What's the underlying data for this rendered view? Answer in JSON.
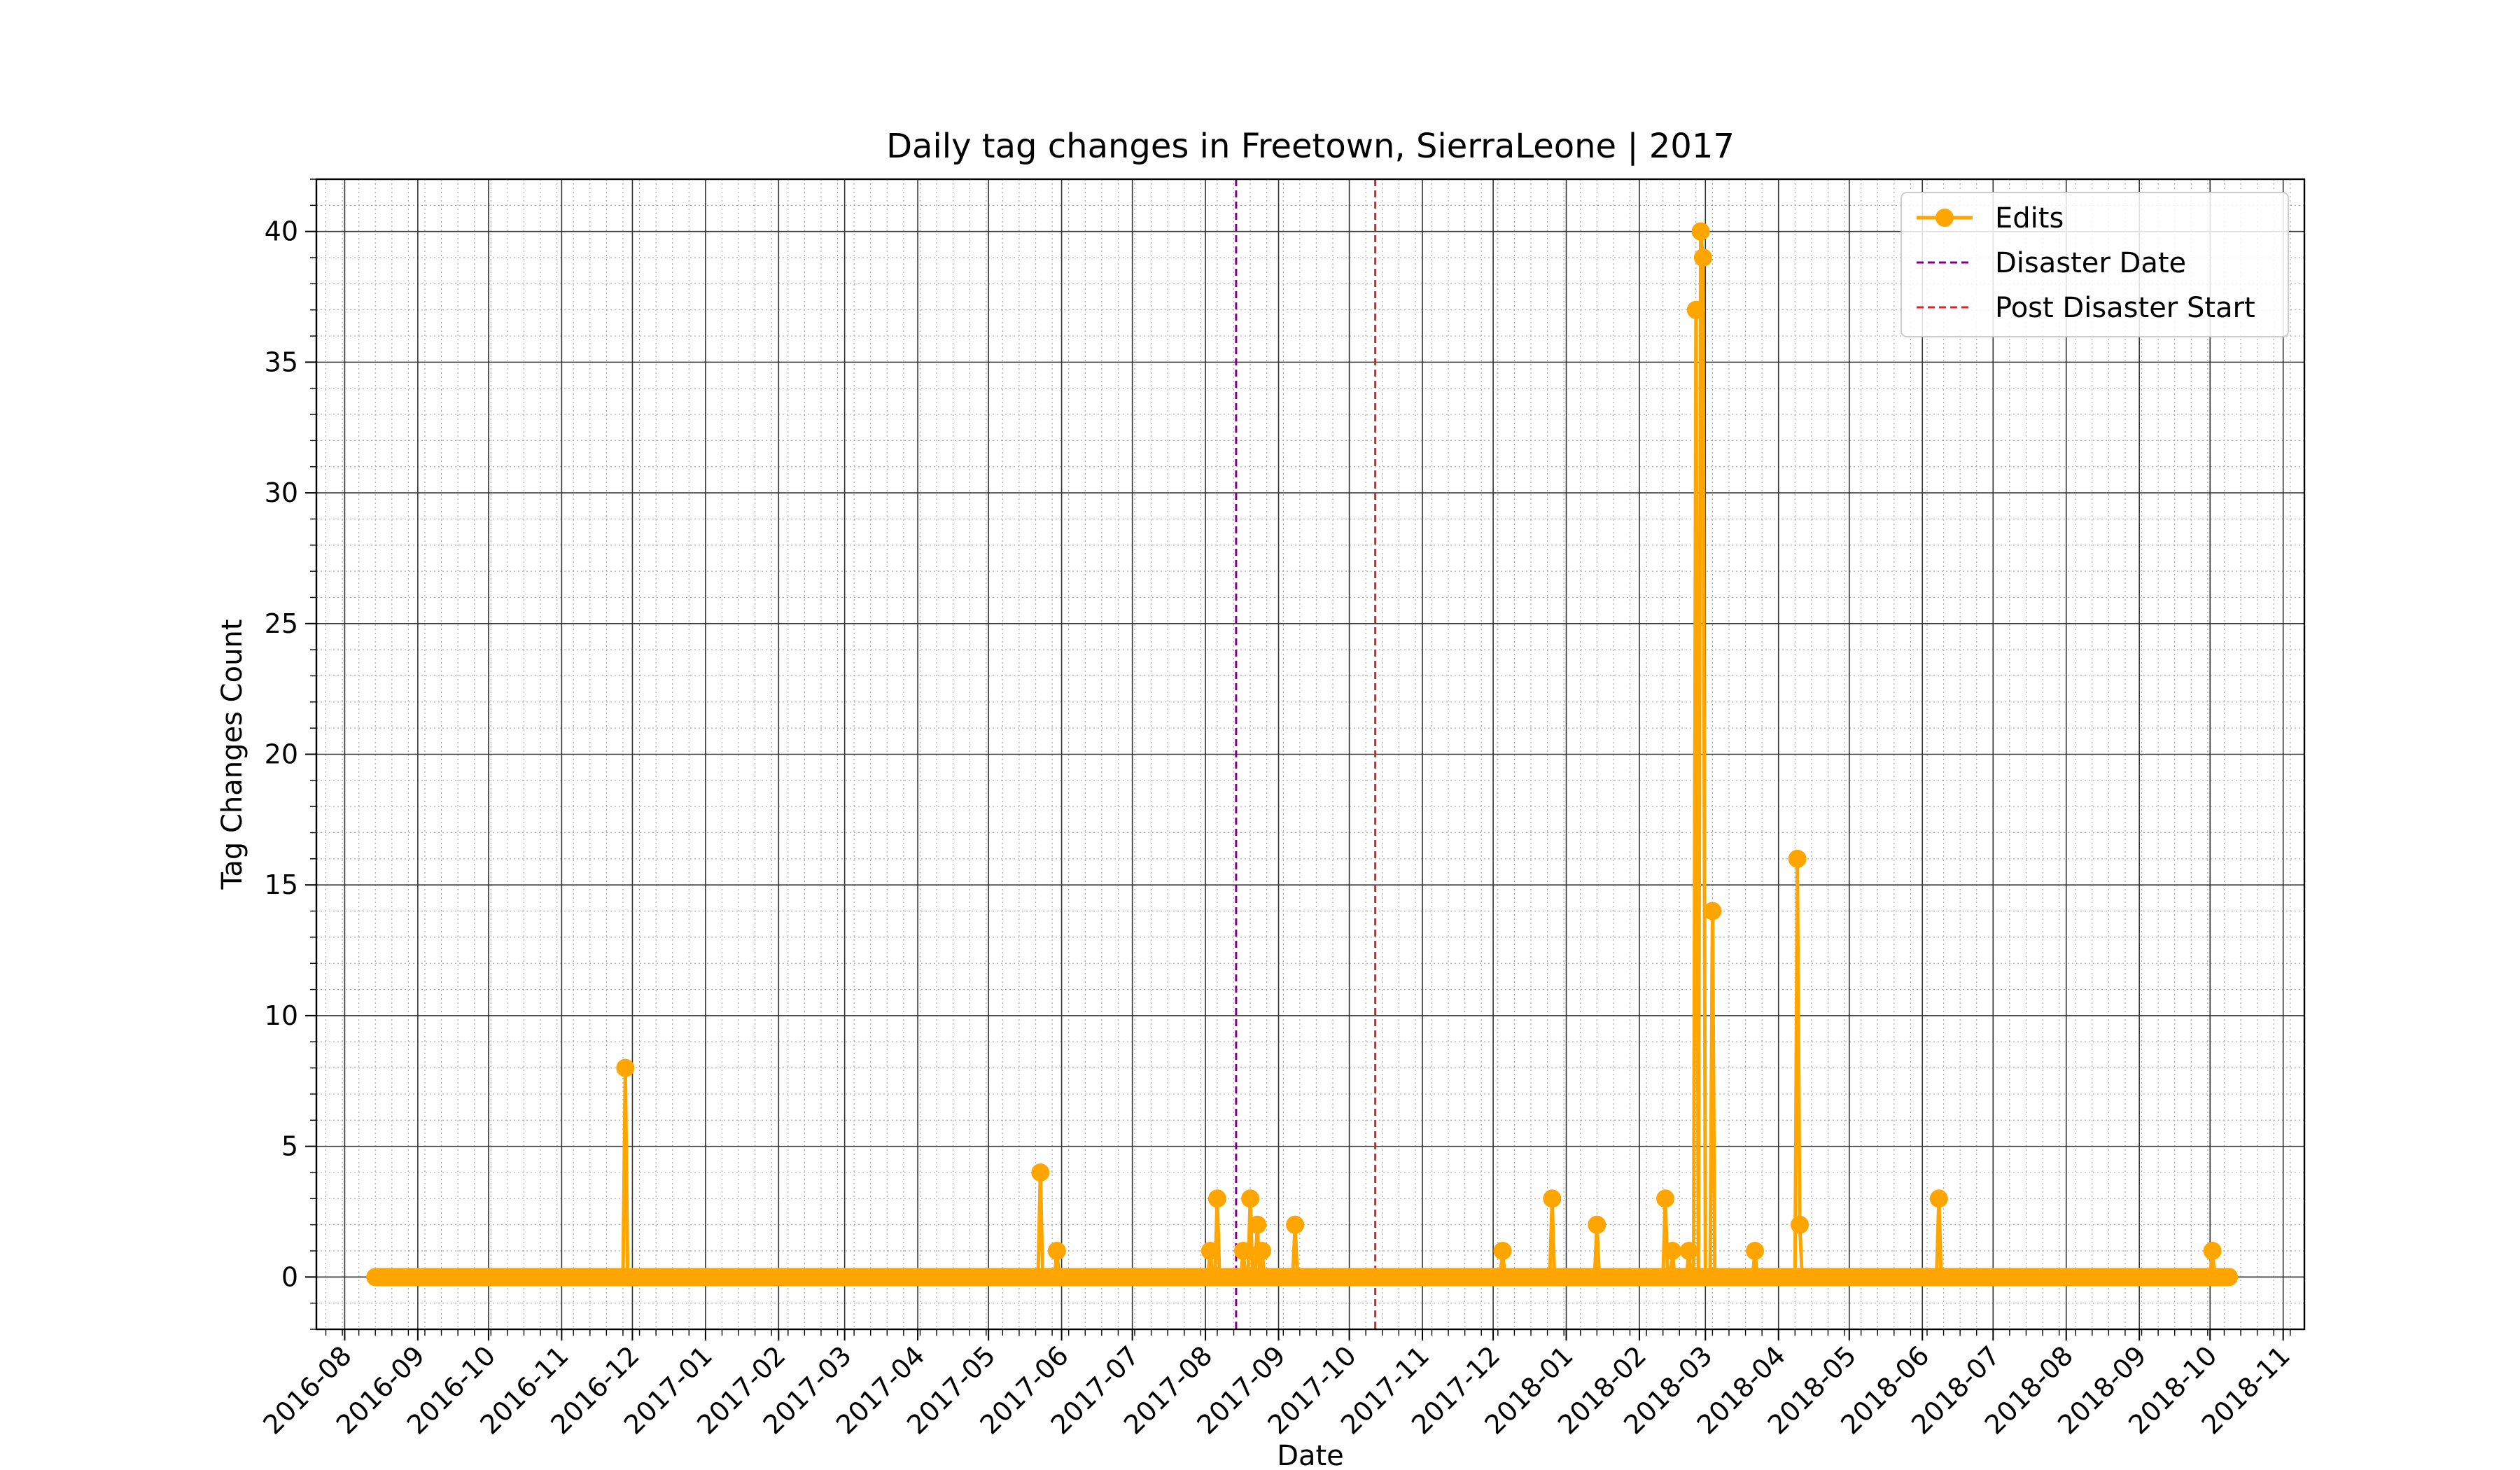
{
  "chart_data": {
    "type": "line",
    "title": "Daily tag changes in Freetown, SierraLeone | 2017",
    "xlabel": "Date",
    "ylabel": "Tag Changes Count",
    "x_range": [
      "2016-07-20",
      "2018-11-10"
    ],
    "ylim": [
      -2,
      42
    ],
    "x_ticks": [
      "2016-08",
      "2016-09",
      "2016-10",
      "2016-11",
      "2016-12",
      "2017-01",
      "2017-02",
      "2017-03",
      "2017-04",
      "2017-05",
      "2017-06",
      "2017-07",
      "2017-08",
      "2017-09",
      "2017-10",
      "2017-11",
      "2017-12",
      "2018-01",
      "2018-02",
      "2018-03",
      "2018-04",
      "2018-05",
      "2018-06",
      "2018-07",
      "2018-08",
      "2018-09",
      "2018-10",
      "2018-11"
    ],
    "y_ticks": [
      0,
      5,
      10,
      15,
      20,
      25,
      30,
      35,
      40
    ],
    "grid": true,
    "legend_position": "top-right",
    "series": [
      {
        "name": "Edits",
        "color": "#ffa500",
        "baseline_range": [
          "2016-08-14",
          "2018-10-09"
        ],
        "baseline_value": 0,
        "points": [
          {
            "x": "2016-11-28",
            "y": 8
          },
          {
            "x": "2017-05-23",
            "y": 4
          },
          {
            "x": "2017-05-30",
            "y": 1
          },
          {
            "x": "2017-08-03",
            "y": 1
          },
          {
            "x": "2017-08-06",
            "y": 3
          },
          {
            "x": "2017-08-17",
            "y": 1
          },
          {
            "x": "2017-08-20",
            "y": 3
          },
          {
            "x": "2017-08-23",
            "y": 2
          },
          {
            "x": "2017-08-25",
            "y": 1
          },
          {
            "x": "2017-09-08",
            "y": 2
          },
          {
            "x": "2017-12-05",
            "y": 1
          },
          {
            "x": "2017-12-26",
            "y": 3
          },
          {
            "x": "2018-01-14",
            "y": 2
          },
          {
            "x": "2018-02-12",
            "y": 3
          },
          {
            "x": "2018-02-15",
            "y": 1
          },
          {
            "x": "2018-02-22",
            "y": 1
          },
          {
            "x": "2018-02-25",
            "y": 37
          },
          {
            "x": "2018-02-27",
            "y": 40
          },
          {
            "x": "2018-02-28",
            "y": 39
          },
          {
            "x": "2018-03-04",
            "y": 14
          },
          {
            "x": "2018-03-22",
            "y": 1
          },
          {
            "x": "2018-04-09",
            "y": 16
          },
          {
            "x": "2018-04-10",
            "y": 2
          },
          {
            "x": "2018-06-08",
            "y": 3
          },
          {
            "x": "2018-10-02",
            "y": 1
          }
        ]
      }
    ],
    "vertical_lines": [
      {
        "name": "Disaster Date",
        "x": "2017-08-14",
        "color": "#800080",
        "style": "dashed"
      },
      {
        "name": "Post Disaster Start",
        "x": "2017-10-12",
        "color": "#d62728",
        "style": "dashed"
      }
    ]
  }
}
